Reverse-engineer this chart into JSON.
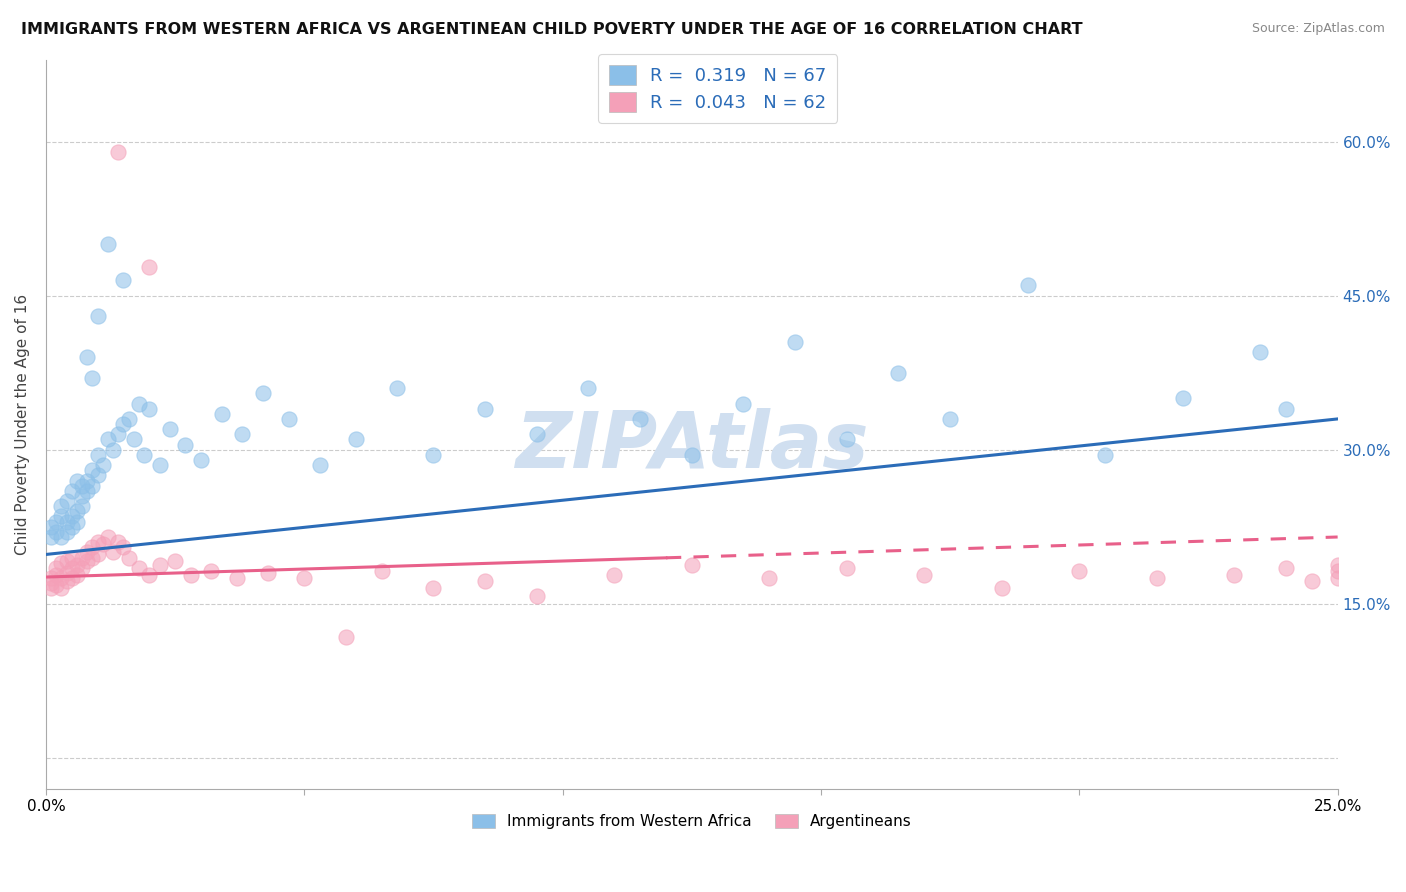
{
  "title": "IMMIGRANTS FROM WESTERN AFRICA VS ARGENTINEAN CHILD POVERTY UNDER THE AGE OF 16 CORRELATION CHART",
  "source": "Source: ZipAtlas.com",
  "ylabel": "Child Poverty Under the Age of 16",
  "xlim": [
    0,
    0.25
  ],
  "ylim": [
    -0.03,
    0.68
  ],
  "yticks": [
    0.0,
    0.15,
    0.3,
    0.45,
    0.6
  ],
  "ytick_labels": [
    "",
    "15.0%",
    "30.0%",
    "45.0%",
    "60.0%"
  ],
  "xticks": [
    0.0,
    0.05,
    0.1,
    0.15,
    0.2,
    0.25
  ],
  "xtick_labels": [
    "0.0%",
    "",
    "",
    "",
    "",
    "25.0%"
  ],
  "legend_label1": "Immigrants from Western Africa",
  "legend_label2": "Argentineans",
  "R1": "0.319",
  "N1": "67",
  "R2": "0.043",
  "N2": "62",
  "blue_color": "#8BBFE8",
  "pink_color": "#F4A0B8",
  "blue_line_color": "#2B6CB8",
  "pink_line_color": "#E8608A",
  "watermark": "ZIPAtlas",
  "watermark_color": "#D0DFF0",
  "blue_trend": [
    0.198,
    0.33
  ],
  "pink_trend_solid": [
    0.0,
    0.12
  ],
  "pink_trend_dashed": [
    0.12,
    0.25
  ],
  "pink_trend_y": [
    0.176,
    0.215
  ],
  "blue_scatter_x": [
    0.001,
    0.001,
    0.002,
    0.002,
    0.003,
    0.003,
    0.003,
    0.004,
    0.004,
    0.004,
    0.005,
    0.005,
    0.005,
    0.006,
    0.006,
    0.006,
    0.007,
    0.007,
    0.007,
    0.008,
    0.008,
    0.009,
    0.009,
    0.01,
    0.01,
    0.011,
    0.012,
    0.013,
    0.014,
    0.015,
    0.016,
    0.017,
    0.018,
    0.019,
    0.02,
    0.022,
    0.024,
    0.027,
    0.03,
    0.034,
    0.038,
    0.042,
    0.047,
    0.053,
    0.06,
    0.068,
    0.075,
    0.085,
    0.095,
    0.105,
    0.115,
    0.125,
    0.135,
    0.145,
    0.155,
    0.165,
    0.175,
    0.19,
    0.205,
    0.22,
    0.235,
    0.24,
    0.008,
    0.009,
    0.01,
    0.012,
    0.015
  ],
  "blue_scatter_y": [
    0.215,
    0.225,
    0.22,
    0.23,
    0.235,
    0.215,
    0.245,
    0.23,
    0.22,
    0.25,
    0.235,
    0.225,
    0.26,
    0.24,
    0.23,
    0.27,
    0.255,
    0.245,
    0.265,
    0.26,
    0.27,
    0.28,
    0.265,
    0.275,
    0.295,
    0.285,
    0.31,
    0.3,
    0.315,
    0.325,
    0.33,
    0.31,
    0.345,
    0.295,
    0.34,
    0.285,
    0.32,
    0.305,
    0.29,
    0.335,
    0.315,
    0.355,
    0.33,
    0.285,
    0.31,
    0.36,
    0.295,
    0.34,
    0.315,
    0.36,
    0.33,
    0.295,
    0.345,
    0.405,
    0.31,
    0.375,
    0.33,
    0.46,
    0.295,
    0.35,
    0.395,
    0.34,
    0.39,
    0.37,
    0.43,
    0.5,
    0.465
  ],
  "pink_scatter_x": [
    0.001,
    0.001,
    0.001,
    0.002,
    0.002,
    0.002,
    0.003,
    0.003,
    0.003,
    0.004,
    0.004,
    0.004,
    0.005,
    0.005,
    0.005,
    0.006,
    0.006,
    0.007,
    0.007,
    0.008,
    0.008,
    0.009,
    0.009,
    0.01,
    0.01,
    0.011,
    0.012,
    0.013,
    0.014,
    0.015,
    0.016,
    0.018,
    0.02,
    0.022,
    0.025,
    0.028,
    0.032,
    0.037,
    0.043,
    0.05,
    0.058,
    0.065,
    0.075,
    0.085,
    0.095,
    0.11,
    0.125,
    0.14,
    0.155,
    0.17,
    0.185,
    0.2,
    0.215,
    0.23,
    0.24,
    0.245,
    0.25,
    0.255,
    0.25,
    0.25,
    0.014,
    0.02
  ],
  "pink_scatter_y": [
    0.17,
    0.165,
    0.175,
    0.178,
    0.168,
    0.185,
    0.175,
    0.165,
    0.19,
    0.18,
    0.172,
    0.192,
    0.185,
    0.175,
    0.195,
    0.188,
    0.178,
    0.195,
    0.185,
    0.2,
    0.192,
    0.205,
    0.195,
    0.21,
    0.198,
    0.208,
    0.215,
    0.2,
    0.21,
    0.205,
    0.195,
    0.185,
    0.178,
    0.188,
    0.192,
    0.178,
    0.182,
    0.175,
    0.18,
    0.175,
    0.118,
    0.182,
    0.165,
    0.172,
    0.158,
    0.178,
    0.188,
    0.175,
    0.185,
    0.178,
    0.165,
    0.182,
    0.175,
    0.178,
    0.185,
    0.172,
    0.182,
    0.178,
    0.175,
    0.188,
    0.59,
    0.478
  ]
}
